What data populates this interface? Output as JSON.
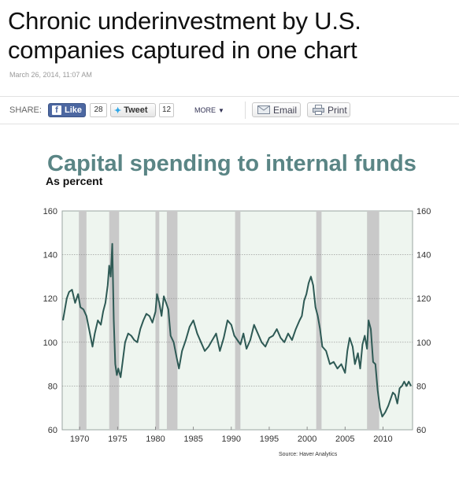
{
  "article": {
    "headline_line1": "Chronic underinvestment by U.S.",
    "headline_line2": "companies captured in one chart",
    "timestamp": "March 26, 2014, 11:07 AM"
  },
  "share_bar": {
    "label": "SHARE:",
    "facebook_label": "Like",
    "facebook_count": "28",
    "twitter_label": "Tweet",
    "twitter_count": "12",
    "more_label": "MORE",
    "email_label": "Email",
    "print_label": "Print"
  },
  "colors": {
    "title_color": "#5a8585",
    "line_color": "#2e5a55",
    "plot_background": "#eef5ef",
    "recession_shade": "#c9c9c9"
  },
  "chart_data": {
    "type": "line",
    "title": "Capital spending to internal funds",
    "subtitle": "As percent",
    "source": "Source: Haver Analytics",
    "xlim": [
      1967.7,
      2013.9
    ],
    "ylim": [
      60,
      160
    ],
    "y_ticks": [
      60,
      80,
      100,
      120,
      140,
      160
    ],
    "y_tick_labels_left": [
      "60",
      "80",
      "100",
      "120",
      "140",
      "160"
    ],
    "y_tick_labels_right": [
      "60",
      "80",
      "100",
      "120",
      "140",
      "160"
    ],
    "x_ticks": [
      1970,
      1975,
      1980,
      1985,
      1990,
      1995,
      2000,
      2005,
      2010
    ],
    "x_tick_labels": [
      "1970",
      "1975",
      "1980",
      "1985",
      "1990",
      "1995",
      "2000",
      "2005",
      "2010"
    ],
    "grid": "horizontal dashed",
    "recessions": [
      [
        1969.9,
        1970.9
      ],
      [
        1973.9,
        1975.2
      ],
      [
        1980.0,
        1980.5
      ],
      [
        1981.5,
        1982.9
      ],
      [
        1990.5,
        1991.2
      ],
      [
        2001.2,
        2001.9
      ],
      [
        2007.9,
        2009.5
      ]
    ],
    "series": [
      {
        "x": [
          1967.8,
          1968.0,
          1968.3,
          1968.6,
          1969.0,
          1969.4,
          1969.8,
          1970.1,
          1970.5,
          1970.9,
          1971.3,
          1971.7,
          1972.0,
          1972.4,
          1972.8,
          1973.1,
          1973.4,
          1973.7,
          1973.9,
          1974.1,
          1974.3,
          1974.5,
          1974.7,
          1974.9,
          1975.1,
          1975.4,
          1975.7,
          1976.0,
          1976.4,
          1976.8,
          1977.2,
          1977.6,
          1978.0,
          1978.4,
          1978.8,
          1979.2,
          1979.6,
          1980.0,
          1980.2,
          1980.5,
          1980.8,
          1981.1,
          1981.4,
          1981.7,
          1982.0,
          1982.4,
          1982.8,
          1983.1,
          1983.5,
          1984.0,
          1984.5,
          1985.0,
          1985.5,
          1986.0,
          1986.5,
          1987.0,
          1987.5,
          1988.0,
          1988.5,
          1989.0,
          1989.5,
          1990.0,
          1990.4,
          1990.8,
          1991.2,
          1991.6,
          1992.0,
          1992.5,
          1993.0,
          1993.5,
          1994.0,
          1994.5,
          1995.0,
          1995.5,
          1996.0,
          1996.5,
          1997.0,
          1997.5,
          1998.0,
          1998.5,
          1999.0,
          1999.3,
          1999.6,
          1999.9,
          2000.2,
          2000.5,
          2000.8,
          2001.1,
          2001.4,
          2001.7,
          2002.0,
          2002.5,
          2003.0,
          2003.5,
          2004.0,
          2004.5,
          2005.0,
          2005.3,
          2005.6,
          2006.0,
          2006.3,
          2006.7,
          2007.0,
          2007.3,
          2007.6,
          2007.9,
          2008.1,
          2008.4,
          2008.7,
          2009.0,
          2009.3,
          2009.6,
          2009.9,
          2010.3,
          2010.7,
          2011.0,
          2011.3,
          2011.6,
          2011.9,
          2012.2,
          2012.5,
          2012.8,
          2013.1,
          2013.4,
          2013.7
        ],
        "y": [
          110,
          114,
          120,
          123,
          124,
          118,
          122,
          116,
          115,
          112,
          105,
          98,
          104,
          110,
          108,
          114,
          118,
          126,
          135,
          130,
          145,
          110,
          90,
          85,
          88,
          84,
          92,
          100,
          104,
          103,
          101,
          100,
          106,
          110,
          113,
          112,
          109,
          114,
          122,
          118,
          112,
          121,
          118,
          115,
          103,
          100,
          93,
          88,
          96,
          101,
          107,
          110,
          104,
          100,
          96,
          98,
          101,
          104,
          96,
          102,
          110,
          108,
          103,
          101,
          99,
          104,
          97,
          101,
          108,
          104,
          100,
          98,
          102,
          103,
          106,
          102,
          100,
          104,
          101,
          106,
          110,
          112,
          119,
          122,
          127,
          130,
          126,
          116,
          112,
          106,
          98,
          96,
          90,
          91,
          88,
          90,
          86,
          96,
          102,
          98,
          90,
          95,
          88,
          99,
          103,
          97,
          110,
          106,
          91,
          90,
          78,
          70,
          66,
          68,
          71,
          74,
          77,
          76,
          72,
          79,
          80,
          82,
          80,
          82,
          80
        ]
      }
    ]
  }
}
